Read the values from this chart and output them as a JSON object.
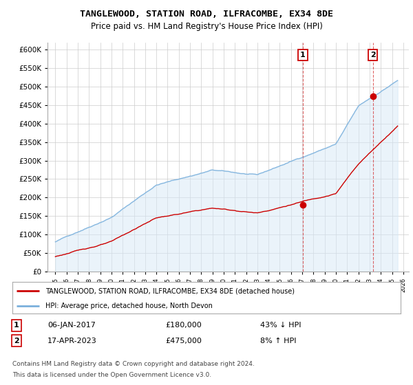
{
  "title": "TANGLEWOOD, STATION ROAD, ILFRACOMBE, EX34 8DE",
  "subtitle": "Price paid vs. HM Land Registry's House Price Index (HPI)",
  "legend_line1": "TANGLEWOOD, STATION ROAD, ILFRACOMBE, EX34 8DE (detached house)",
  "legend_line2": "HPI: Average price, detached house, North Devon",
  "annotation1_label": "1",
  "annotation1_date": "06-JAN-2017",
  "annotation1_price": "£180,000",
  "annotation1_hpi": "43% ↓ HPI",
  "annotation1_year": 2017.05,
  "annotation1_value": 180000,
  "annotation2_label": "2",
  "annotation2_date": "17-APR-2023",
  "annotation2_price": "£475,000",
  "annotation2_hpi": "8% ↑ HPI",
  "annotation2_year": 2023.3,
  "annotation2_value": 475000,
  "hpi_color": "#7ab0dc",
  "hpi_fill_color": "#d6e8f7",
  "paid_color": "#cc0000",
  "annotation_color": "#cc0000",
  "dashed_color": "#cc0000",
  "background_color": "#ffffff",
  "grid_color": "#cccccc",
  "ylim": [
    0,
    620000
  ],
  "yticks": [
    0,
    50000,
    100000,
    150000,
    200000,
    250000,
    300000,
    350000,
    400000,
    450000,
    500000,
    550000,
    600000
  ],
  "footer_line1": "Contains HM Land Registry data © Crown copyright and database right 2024.",
  "footer_line2": "This data is licensed under the Open Government Licence v3.0."
}
